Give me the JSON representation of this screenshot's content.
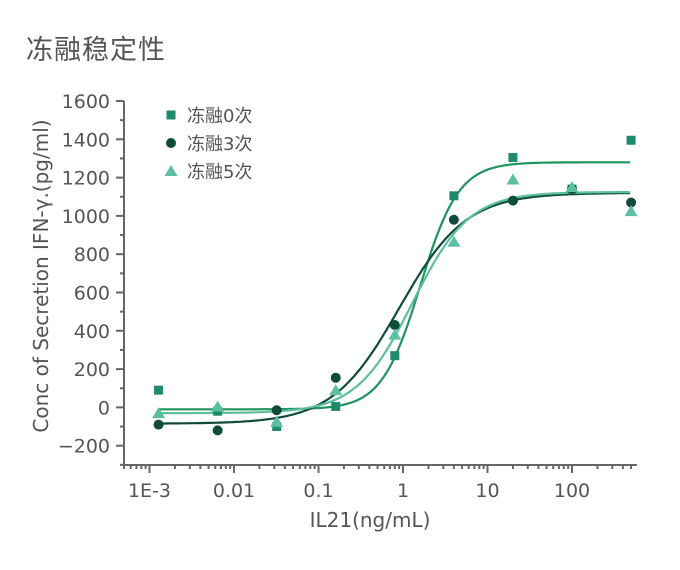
{
  "title": "冻融稳定性",
  "chart_data": {
    "type": "scatter",
    "title": "冻融稳定性",
    "xlabel": "IL21(ng/mL)",
    "ylabel": "Conc of Secretion IFN-γ.(pg/ml)",
    "xscale": "log",
    "xlim": [
      0.0006,
      500
    ],
    "ylim": [
      -300,
      1600
    ],
    "x_ticks": [
      "1E-3",
      "0.01",
      "0.1",
      "1",
      "10",
      "100"
    ],
    "y_ticks": [
      "1600",
      "1400",
      "1200",
      "1000",
      "800",
      "600",
      "400",
      "200",
      "0",
      "-200"
    ],
    "legend_position": "upper left",
    "x": [
      0.00128,
      0.0064,
      0.032,
      0.16,
      0.8,
      4,
      20,
      100,
      500
    ],
    "series": [
      {
        "name": "冻融0次",
        "marker": "square",
        "color": "#1f8a6c",
        "line_color": "#20945c",
        "values": [
          90,
          -20,
          -100,
          5,
          270,
          1105,
          1305,
          1140,
          1395
        ],
        "fit": {
          "bottom": -10,
          "top": 1280,
          "ec50": 1.6,
          "hill": 1.9
        }
      },
      {
        "name": "冻融3次",
        "marker": "circle",
        "color": "#0f4d3a",
        "line_color": "#0f4d3a",
        "values": [
          -90,
          -120,
          -15,
          155,
          430,
          980,
          1080,
          1140,
          1070
        ],
        "fit": {
          "bottom": -85,
          "top": 1120,
          "ec50": 0.9,
          "hill": 1.1
        }
      },
      {
        "name": "冻融5次",
        "marker": "triangle",
        "color": "#5cbf9f",
        "line_color": "#5cbf9f",
        "values": [
          -30,
          5,
          -75,
          90,
          380,
          865,
          1190,
          1150,
          1025
        ],
        "fit": {
          "bottom": -30,
          "top": 1125,
          "ec50": 1.3,
          "hill": 1.3
        }
      }
    ]
  }
}
